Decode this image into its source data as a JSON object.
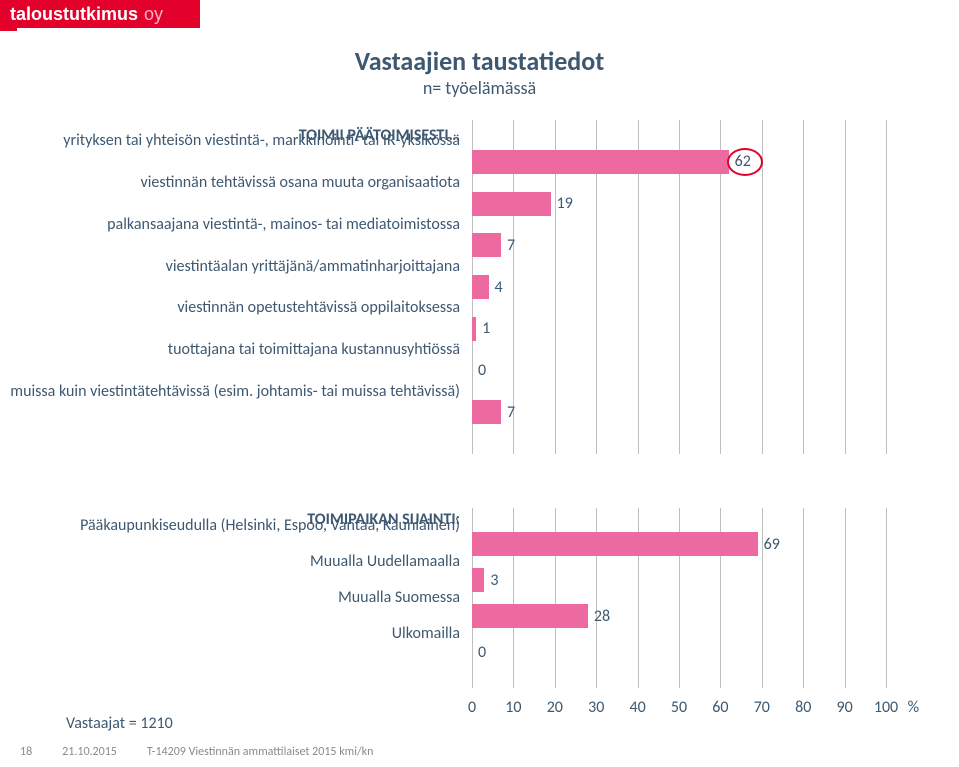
{
  "brand": {
    "name": "taloustutkimus",
    "suffix": "oy"
  },
  "title": {
    "main": "Vastaajien taustatiedot",
    "sub": "n= työelämässä"
  },
  "chart1": {
    "type": "bar-horizontal",
    "grid_color": "#bfbfbf",
    "bar_color": "#ec6aa0",
    "text_color": "#3d5870",
    "n_gridlines": 11,
    "section": "TOIMII PÄÄTOIMISESTI…",
    "rows": [
      {
        "label": "yrityksen tai yhteisön viestintä-, markkinointi- tai IR-yksikössä",
        "value": 62,
        "circle": true
      },
      {
        "label": "viestinnän tehtävissä osana muuta organisaatiota",
        "value": 19
      },
      {
        "label": "palkansaajana viestintä-, mainos- tai mediatoimistossa",
        "value": 7
      },
      {
        "label": "viestintäalan yrittäjänä/ammatinharjoittajana",
        "value": 4
      },
      {
        "label": "viestinnän opetustehtävissä oppilaitoksessa",
        "value": 1
      },
      {
        "label": "tuottajana tai toimittajana kustannusyhtiössä",
        "value": 0
      },
      {
        "label": "muissa kuin viestintätehtävissä (esim. johtamis- tai muissa tehtävissä)",
        "value": 7
      }
    ]
  },
  "chart2": {
    "type": "bar-horizontal",
    "grid_color": "#bfbfbf",
    "bar_color": "#ec6aa0",
    "text_color": "#3d5870",
    "n_gridlines": 11,
    "section": "TOIMIPAIKAN SIJAINTI:",
    "rows": [
      {
        "label": "Pääkaupunkiseudulla (Helsinki, Espoo, Vantaa, Kauniainen)",
        "value": 69
      },
      {
        "label": "Muualla Uudellamaalla",
        "value": 3
      },
      {
        "label": "Muualla Suomessa",
        "value": 28
      },
      {
        "label": "Ulkomailla",
        "value": 0
      }
    ]
  },
  "xaxis": {
    "ticks": [
      0,
      10,
      20,
      30,
      40,
      50,
      60,
      70,
      80,
      90,
      100
    ],
    "max": 100,
    "percent_label": "%"
  },
  "respondents": {
    "label": "Vastaajat = 1210"
  },
  "footer": {
    "page": "18",
    "date": "21.10.2015",
    "ref": "T-14209 Viestinnän ammattilaiset 2015 kmi/kn"
  }
}
